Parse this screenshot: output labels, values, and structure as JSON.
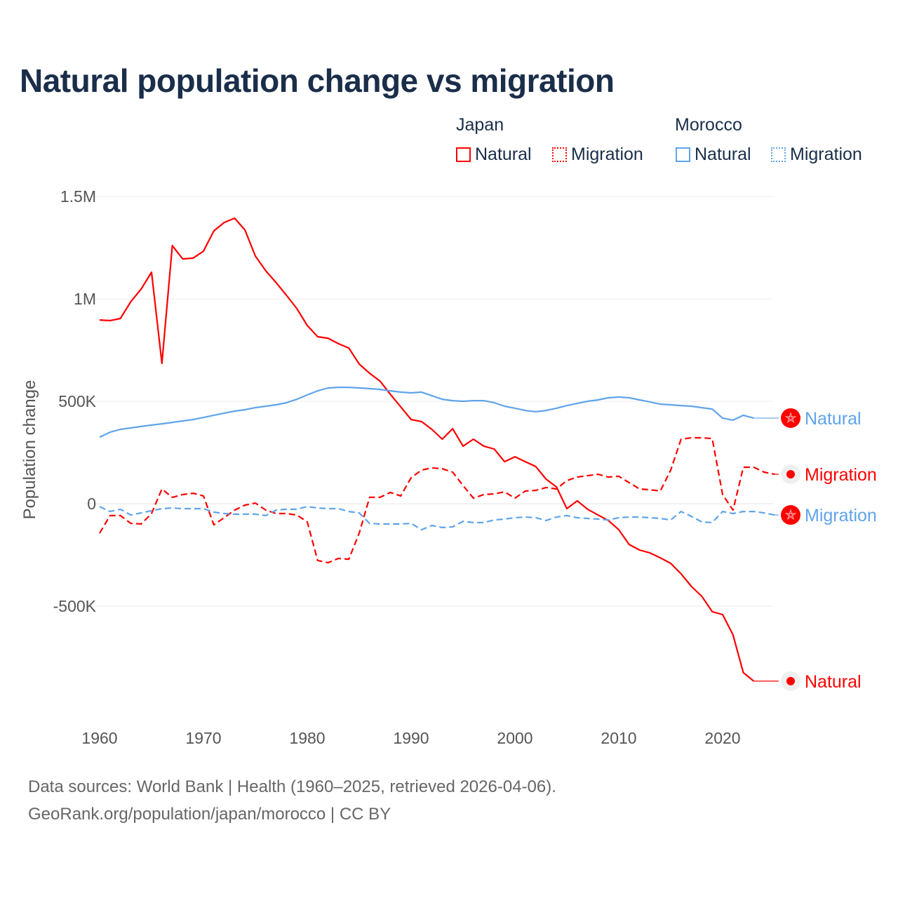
{
  "chart_data": {
    "type": "line",
    "title": "Natural population change vs migration",
    "ylabel": "Population change",
    "xlabel": "",
    "xlim": [
      1960,
      2025
    ],
    "ylim": [
      -1000000,
      1500000
    ],
    "x_ticks": [
      1960,
      1970,
      1980,
      1990,
      2000,
      2010,
      2020
    ],
    "x_tick_labels": [
      "1960",
      "1970",
      "1980",
      "1990",
      "2000",
      "2010",
      "2020"
    ],
    "y_ticks": [
      -500000,
      0,
      500000,
      1000000,
      1500000
    ],
    "y_tick_labels": [
      "-500K",
      "0",
      "500K",
      "1M",
      "1.5M"
    ],
    "grid": true,
    "legend": {
      "placement": "top-right",
      "groups": [
        {
          "name": "Japan",
          "items": [
            "Natural",
            "Migration"
          ]
        },
        {
          "name": "Morocco",
          "items": [
            "Natural",
            "Migration"
          ]
        }
      ]
    },
    "start_year": 1960,
    "series": [
      {
        "name": "Natural",
        "country": "Japan",
        "color": "#ff0000",
        "style": "solid",
        "values": [
          897000,
          894000,
          904000,
          986000,
          1048000,
          1130000,
          685000,
          1260000,
          1195000,
          1199000,
          1233000,
          1332000,
          1373000,
          1394000,
          1336000,
          1209000,
          1137000,
          1079000,
          1017000,
          952000,
          870000,
          815000,
          808000,
          781000,
          760000,
          682000,
          637000,
          599000,
          534000,
          473000,
          411000,
          401000,
          363000,
          315000,
          366000,
          281000,
          315000,
          281000,
          267000,
          205000,
          229000,
          205000,
          182000,
          120000,
          82000,
          -24000,
          14000,
          -27000,
          -55000,
          -82000,
          -127000,
          -199000,
          -226000,
          -240000,
          -264000,
          -291000,
          -342000,
          -404000,
          -452000,
          -527000,
          -541000,
          -640000,
          -825000,
          -866000
        ]
      },
      {
        "name": "Migration",
        "country": "Japan",
        "color": "#ff0000",
        "style": "dashed",
        "values": [
          -144000,
          -58000,
          -58000,
          -96000,
          -99000,
          -48000,
          72000,
          31000,
          45000,
          51000,
          38000,
          -103000,
          -68000,
          -31000,
          -7000,
          3000,
          -31000,
          -48000,
          -48000,
          -55000,
          -89000,
          -277000,
          -288000,
          -267000,
          -271000,
          -144000,
          31000,
          31000,
          55000,
          38000,
          127000,
          164000,
          175000,
          171000,
          154000,
          89000,
          27000,
          45000,
          48000,
          58000,
          27000,
          62000,
          65000,
          79000,
          72000,
          113000,
          130000,
          137000,
          144000,
          130000,
          134000,
          103000,
          72000,
          68000,
          62000,
          164000,
          315000,
          322000,
          322000,
          318000,
          45000,
          -31000,
          178000,
          178000,
          154000,
          144000
        ]
      },
      {
        "name": "Natural",
        "country": "Morocco",
        "color": "#5fa4ea",
        "style": "solid",
        "values": [
          325000,
          349000,
          363000,
          370000,
          377000,
          384000,
          390000,
          397000,
          404000,
          411000,
          421000,
          432000,
          442000,
          452000,
          459000,
          469000,
          476000,
          483000,
          493000,
          510000,
          531000,
          551000,
          565000,
          568000,
          568000,
          565000,
          562000,
          558000,
          551000,
          545000,
          541000,
          545000,
          527000,
          510000,
          503000,
          500000,
          503000,
          503000,
          493000,
          476000,
          466000,
          455000,
          449000,
          455000,
          466000,
          479000,
          490000,
          500000,
          507000,
          517000,
          521000,
          517000,
          507000,
          497000,
          486000,
          483000,
          479000,
          476000,
          469000,
          462000,
          418000,
          408000,
          432000,
          418000
        ]
      },
      {
        "name": "Migration",
        "country": "Morocco",
        "color": "#5fa4ea",
        "style": "dashed",
        "values": [
          -14000,
          -38000,
          -27000,
          -55000,
          -45000,
          -34000,
          -24000,
          -21000,
          -24000,
          -24000,
          -24000,
          -41000,
          -48000,
          -51000,
          -51000,
          -51000,
          -58000,
          -31000,
          -27000,
          -27000,
          -14000,
          -21000,
          -24000,
          -24000,
          -38000,
          -45000,
          -96000,
          -99000,
          -99000,
          -99000,
          -96000,
          -127000,
          -106000,
          -116000,
          -113000,
          -86000,
          -92000,
          -92000,
          -79000,
          -75000,
          -68000,
          -65000,
          -68000,
          -82000,
          -65000,
          -58000,
          -68000,
          -72000,
          -75000,
          -79000,
          -68000,
          -65000,
          -65000,
          -68000,
          -72000,
          -79000,
          -38000,
          -62000,
          -89000,
          -92000,
          -38000,
          -48000,
          -38000,
          -38000,
          -45000,
          -55000
        ]
      }
    ]
  },
  "footer": {
    "line1": "Data sources: World Bank | Health (1960–2025, retrieved 2026-04-06).",
    "line2": "GeoRank.org/population/japan/morocco | CC BY"
  }
}
